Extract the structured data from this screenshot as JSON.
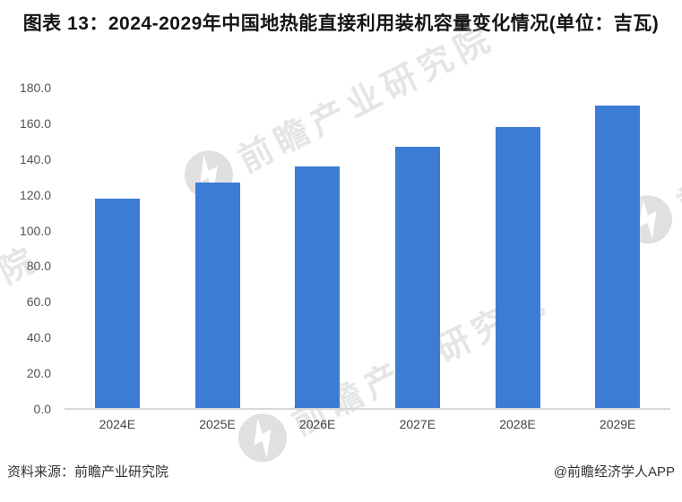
{
  "chart_data": {
    "type": "bar",
    "title": "图表 13：2024-2029年中国地热能直接利用装机容量变化情况(单位：吉瓦)",
    "categories": [
      "2024E",
      "2025E",
      "2026E",
      "2027E",
      "2028E",
      "2029E"
    ],
    "values": [
      118.0,
      127.0,
      136.0,
      147.0,
      158.0,
      170.0
    ],
    "xlabel": "",
    "ylabel": "",
    "ylim": [
      0,
      180
    ],
    "ytick_step": 20,
    "ytick_labels": [
      "180.0",
      "160.0",
      "140.0",
      "120.0",
      "100.0",
      "80.0",
      "60.0",
      "40.0",
      "20.0",
      "0.0"
    ],
    "bar_color": "#3D7CD4",
    "axis_line_color": "#d8d8d8",
    "grid": false,
    "legend": null
  },
  "watermark": {
    "text": "前瞻产业研究院",
    "logo": "lightning-bolt-in-circle"
  },
  "footer": {
    "source": "资料来源：前瞻产业研究院",
    "credit": "@前瞻经济学人APP"
  }
}
